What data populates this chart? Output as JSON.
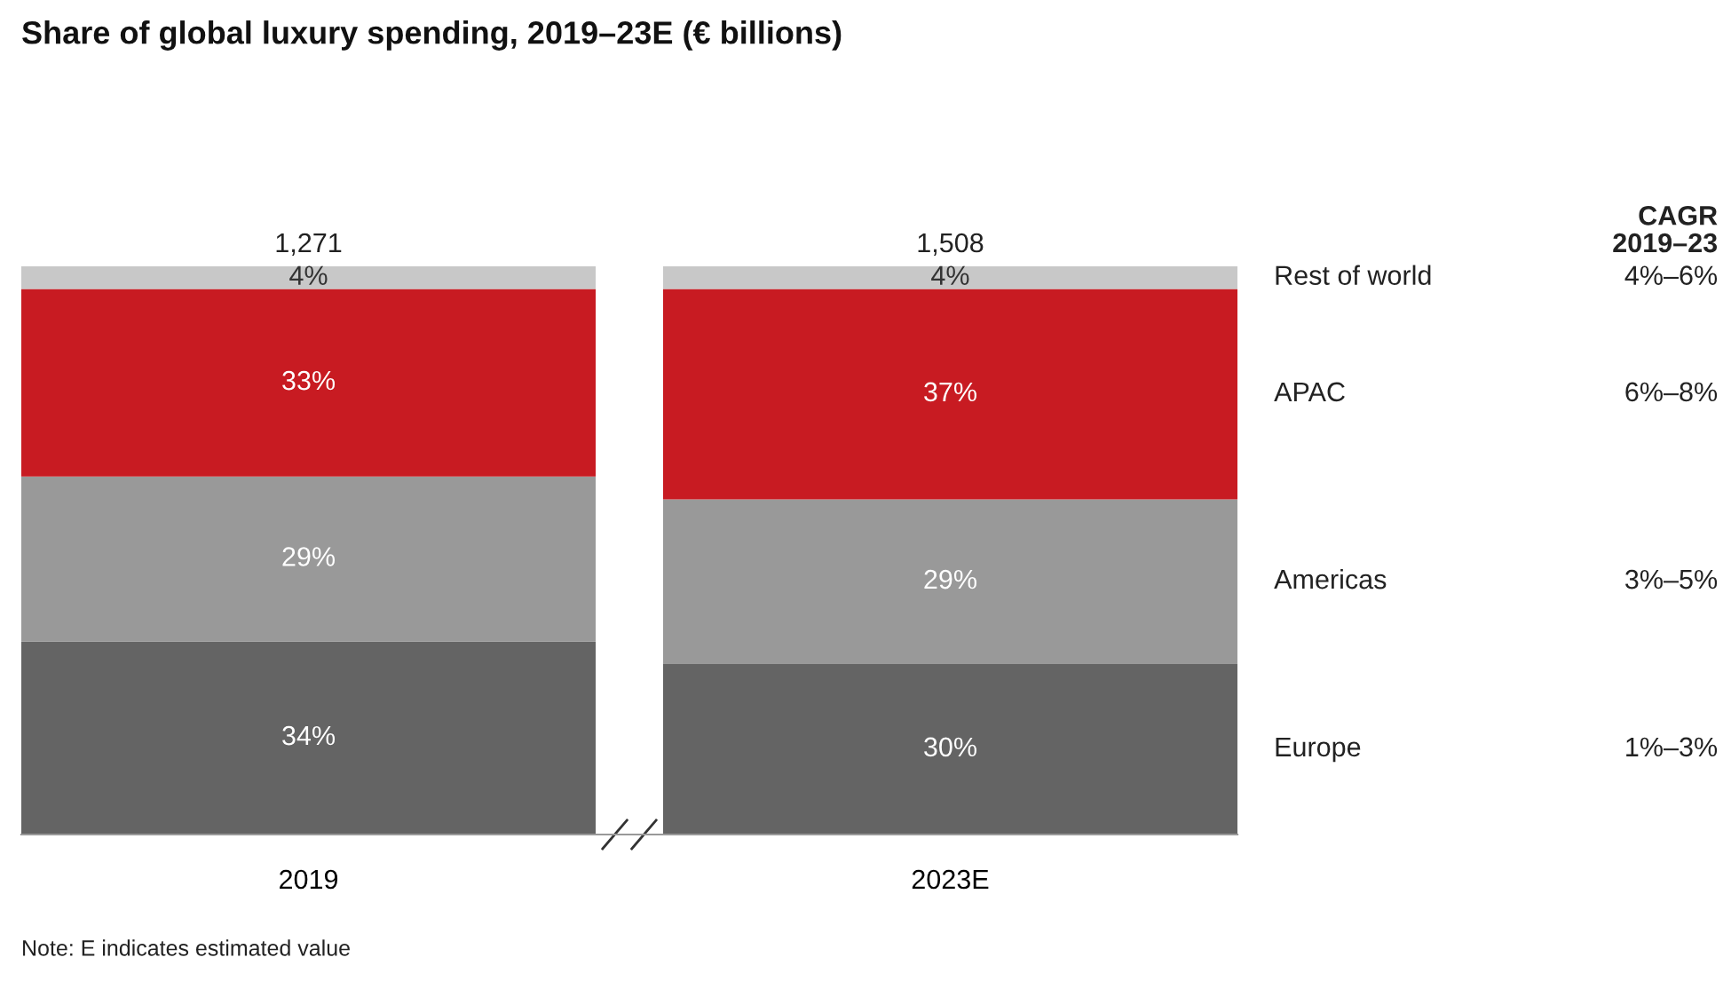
{
  "chart_data": {
    "type": "bar",
    "stacked": true,
    "title": "Share of global luxury spending, 2019–23E (€ billions)",
    "categories": [
      "2019",
      "2023E"
    ],
    "series": [
      {
        "name": "Europe",
        "color": "#646464",
        "values": [
          34,
          30
        ],
        "value_labels": [
          "34%",
          "30%"
        ]
      },
      {
        "name": "Americas",
        "color": "#999999",
        "values": [
          29,
          29
        ],
        "value_labels": [
          "29%",
          "29%"
        ]
      },
      {
        "name": "APAC",
        "color": "#c81b22",
        "values": [
          33,
          37
        ],
        "value_labels": [
          "33%",
          "37%"
        ]
      },
      {
        "name": "Rest of world",
        "color": "#c8c8c8",
        "values": [
          4,
          4
        ],
        "value_labels": [
          "4%",
          "4%"
        ]
      }
    ],
    "annotations": [
      {
        "text": "1,271",
        "x": "2019",
        "y": 100
      },
      {
        "text": "1,508",
        "x": "2023E",
        "y": 100
      },
      "CAGR\n2019–23",
      "1%–3%",
      "3%–5%",
      "6%–8%",
      "4%–6%",
      "Note: E indicates estimated value"
    ],
    "grid": false,
    "legend": false
  }
}
